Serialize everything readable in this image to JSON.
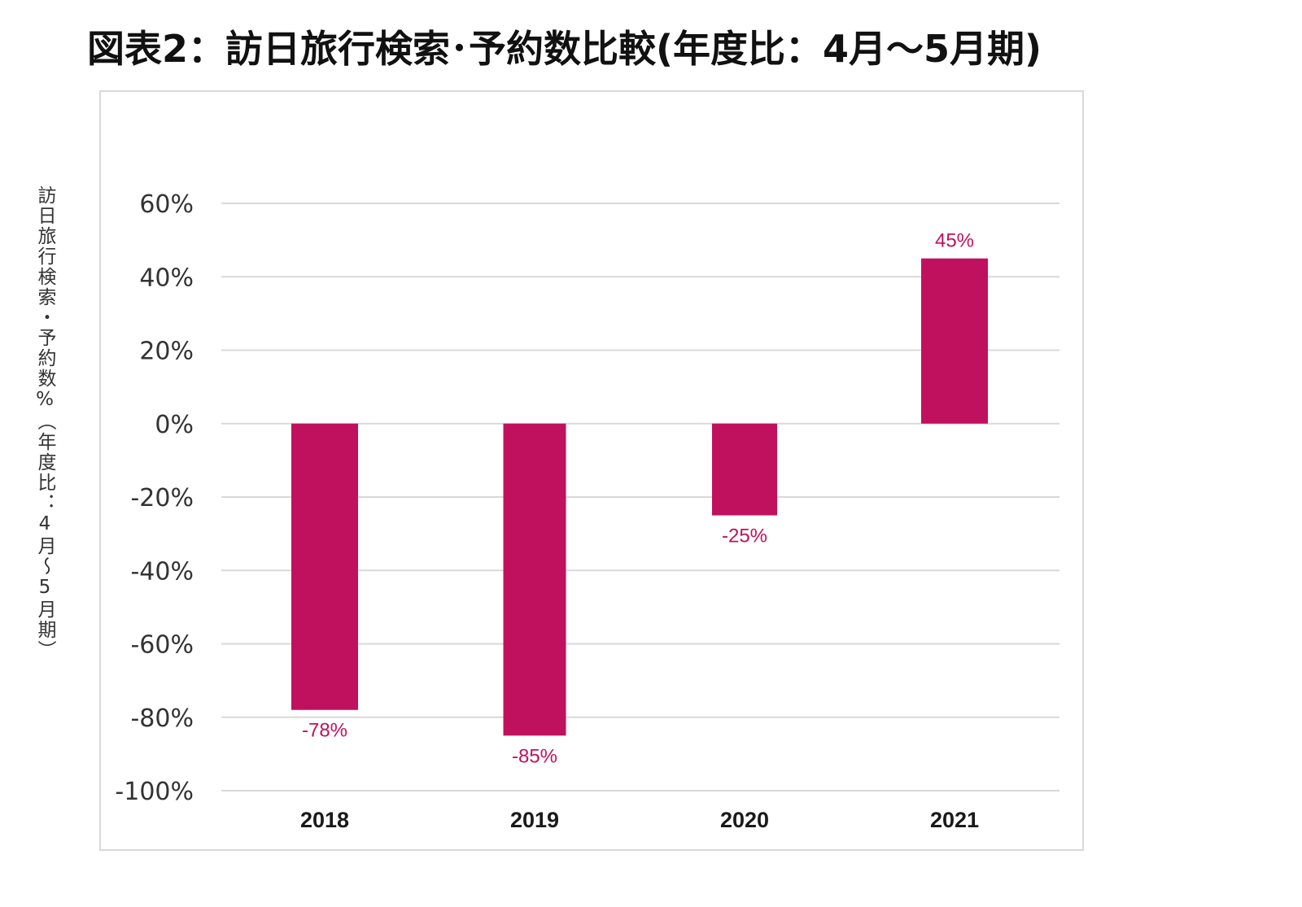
{
  "page": {
    "title": "図表2：訪日旅行検索･予約数比較(年度比：4月～5月期)"
  },
  "chart_data": {
    "type": "bar",
    "title": "図表2：訪日旅行検索･予約数比較(年度比：4月～5月期)",
    "xlabel": "",
    "ylabel": "訪日旅行検索・予約数%（年度比：4月～5月期）",
    "categories": [
      "2018",
      "2019",
      "2020",
      "2021"
    ],
    "series": [
      {
        "name": "訪日旅行検索・予約数",
        "values": [
          -78,
          -85,
          -25,
          45
        ],
        "labels": [
          "-78%",
          "-85%",
          "-25%",
          "45%"
        ],
        "color": "#c0115e"
      }
    ],
    "yticks": [
      60,
      40,
      20,
      0,
      -20,
      -40,
      -60,
      -80,
      -100
    ],
    "ytick_labels": [
      "60%",
      "40%",
      "20%",
      "0%",
      "-20%",
      "-40%",
      "-60%",
      "-80%",
      "-100%"
    ],
    "ylim": [
      -100,
      60
    ],
    "grid": true,
    "legend": "none",
    "colors": {
      "bar": "#c0115e",
      "label": "#c0115e",
      "gridline": "#d9d9d9"
    }
  }
}
